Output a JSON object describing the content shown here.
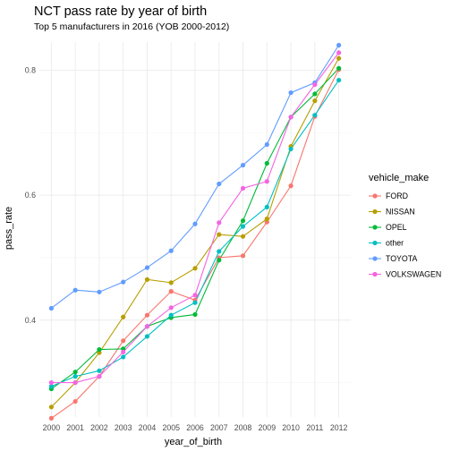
{
  "chart_data": {
    "type": "line",
    "title": "NCT pass rate by year of birth",
    "subtitle": "Top 5 manufacturers in 2016 (YOB 2000-2012)",
    "xlabel": "year_of_birth",
    "ylabel": "pass_rate",
    "categories": [
      "2000",
      "2001",
      "2002",
      "2003",
      "2004",
      "2005",
      "2006",
      "2007",
      "2008",
      "2009",
      "2010",
      "2011",
      "2012"
    ],
    "ylim": [
      0.245,
      0.845
    ],
    "yticks": [
      0.4,
      0.6,
      0.8
    ],
    "ytick_labels": [
      "0.4",
      "0.6",
      "0.8"
    ],
    "grid": true,
    "legend": {
      "title": "vehicle_make",
      "placement": "right"
    },
    "series": [
      {
        "name": "FORD",
        "color": "#F8766D",
        "values": [
          0.243,
          0.27,
          0.31,
          0.367,
          0.408,
          0.446,
          0.432,
          0.5,
          0.503,
          0.557,
          0.615,
          0.726,
          0.801
        ]
      },
      {
        "name": "NISSAN",
        "color": "#B79F00",
        "values": [
          0.261,
          0.3,
          0.348,
          0.405,
          0.465,
          0.46,
          0.483,
          0.537,
          0.534,
          0.562,
          0.678,
          0.751,
          0.819
        ]
      },
      {
        "name": "OPEL",
        "color": "#00BA38",
        "values": [
          0.29,
          0.317,
          0.353,
          0.354,
          0.39,
          0.404,
          0.409,
          0.496,
          0.559,
          0.651,
          0.725,
          0.762,
          0.803
        ]
      },
      {
        "name": "other",
        "color": "#00BFC4",
        "values": [
          0.294,
          0.31,
          0.319,
          0.341,
          0.374,
          0.408,
          0.428,
          0.51,
          0.55,
          0.581,
          0.674,
          0.728,
          0.784
        ]
      },
      {
        "name": "TOYOTA",
        "color": "#619CFF",
        "values": [
          0.419,
          0.448,
          0.445,
          0.461,
          0.484,
          0.511,
          0.554,
          0.618,
          0.648,
          0.681,
          0.764,
          0.78,
          0.84
        ]
      },
      {
        "name": "VOLKSWAGEN",
        "color": "#F564E3",
        "values": [
          0.3,
          0.3,
          0.31,
          0.349,
          0.39,
          0.42,
          0.44,
          0.556,
          0.611,
          0.622,
          0.725,
          0.777,
          0.828
        ]
      }
    ]
  }
}
